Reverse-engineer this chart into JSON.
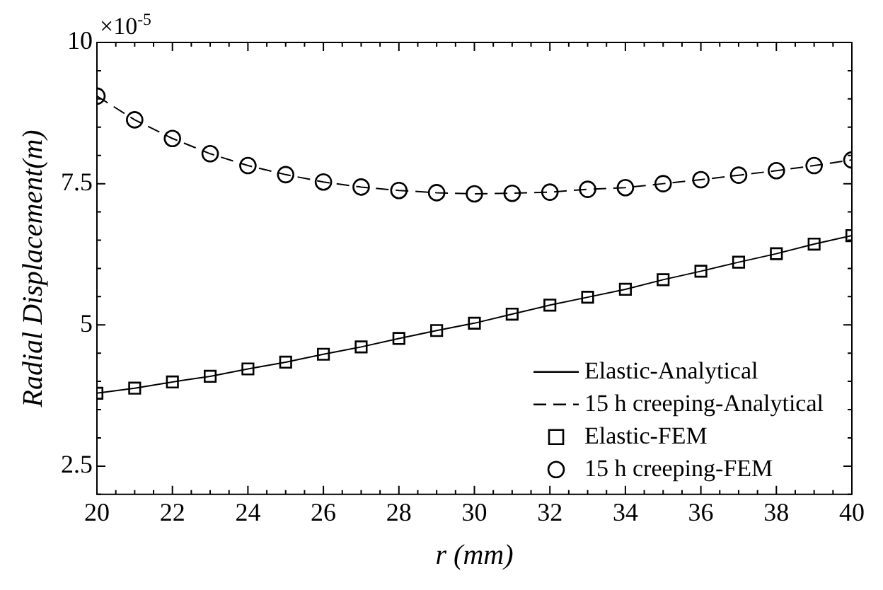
{
  "chart_data": {
    "type": "line",
    "xlabel": "r (mm)",
    "ylabel": "Radial Displacement(m)",
    "annotations": [
      "×10$^{-5}$"
    ],
    "xlim": [
      20,
      40
    ],
    "xticks": [
      20,
      22,
      24,
      26,
      28,
      30,
      32,
      34,
      36,
      38,
      40
    ],
    "ylim": [
      2,
      10
    ],
    "yticks": [
      2.5,
      5,
      7.5,
      10
    ],
    "grid": false,
    "legend": "bottom right",
    "x": [
      20,
      21,
      22,
      23,
      24,
      25,
      26,
      27,
      28,
      29,
      30,
      31,
      32,
      33,
      34,
      35,
      36,
      37,
      38,
      39,
      40
    ],
    "series": [
      {
        "name": "Elastic-Analytical",
        "type": "line",
        "color": "#000000",
        "line_style": "solid",
        "marker": "none",
        "values": [
          3.79,
          3.88,
          3.99,
          4.09,
          4.22,
          4.34,
          4.48,
          4.61,
          4.76,
          4.9,
          5.03,
          5.19,
          5.35,
          5.49,
          5.63,
          5.8,
          5.95,
          6.11,
          6.26,
          6.43,
          6.58
        ]
      },
      {
        "name": "15 h creeping-Analytical",
        "type": "line",
        "color": "#000000",
        "line_style": "dashed",
        "marker": "none",
        "values": [
          9.05,
          8.63,
          8.3,
          8.03,
          7.82,
          7.66,
          7.53,
          7.44,
          7.38,
          7.34,
          7.32,
          7.33,
          7.35,
          7.4,
          7.43,
          7.5,
          7.57,
          7.65,
          7.73,
          7.82,
          7.92
        ]
      },
      {
        "name": "Elastic-FEM",
        "type": "scatter",
        "color": "#000000",
        "marker": "square",
        "values": [
          3.79,
          3.88,
          3.99,
          4.09,
          4.22,
          4.34,
          4.48,
          4.61,
          4.76,
          4.9,
          5.03,
          5.19,
          5.35,
          5.49,
          5.63,
          5.8,
          5.95,
          6.11,
          6.26,
          6.43,
          6.58
        ]
      },
      {
        "name": "15 h creeping-FEM",
        "type": "scatter",
        "color": "#000000",
        "marker": "circle",
        "values": [
          9.05,
          8.63,
          8.3,
          8.03,
          7.82,
          7.66,
          7.53,
          7.44,
          7.38,
          7.34,
          7.32,
          7.33,
          7.35,
          7.4,
          7.43,
          7.5,
          7.57,
          7.65,
          7.73,
          7.82,
          7.92
        ]
      }
    ]
  }
}
